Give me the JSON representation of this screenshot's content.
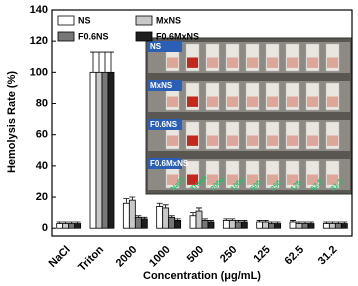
{
  "chart_data": {
    "type": "bar",
    "y_label": "Hemolysis Rate (%)",
    "x_label": "Concentration (μg/mL)",
    "categories": [
      "NaCl",
      "Triton",
      "2000",
      "1000",
      "500",
      "250",
      "125",
      "62.5",
      "31.2"
    ],
    "series": [
      {
        "name": "NS",
        "color": "#ffffff",
        "values": [
          3,
          100,
          16,
          14,
          8,
          5,
          4,
          4,
          3
        ],
        "errors": [
          1,
          13,
          3,
          2,
          2,
          1,
          1,
          1,
          1
        ]
      },
      {
        "name": "MxNS",
        "color": "#c8c8c8",
        "values": [
          3,
          100,
          18,
          13,
          11,
          5,
          4,
          3,
          3
        ],
        "errors": [
          1,
          13,
          2,
          2,
          2,
          1,
          1,
          1,
          1
        ]
      },
      {
        "name": "F0.6NS",
        "color": "#777777",
        "values": [
          3,
          100,
          7,
          7,
          5,
          4,
          3,
          3,
          3
        ],
        "errors": [
          1,
          13,
          1,
          1,
          1,
          1,
          1,
          1,
          1
        ]
      },
      {
        "name": "F0.6MxNS",
        "color": "#1e1e1e",
        "values": [
          3,
          100,
          6,
          5,
          4,
          4,
          3,
          3,
          3
        ],
        "errors": [
          1,
          13,
          1,
          1,
          1,
          1,
          1,
          1,
          1
        ]
      }
    ],
    "ylim": [
      -5,
      140
    ],
    "yticks": [
      0,
      20,
      40,
      60,
      80,
      100,
      120,
      140
    ],
    "grid": false,
    "legend": "top-left"
  }
}
